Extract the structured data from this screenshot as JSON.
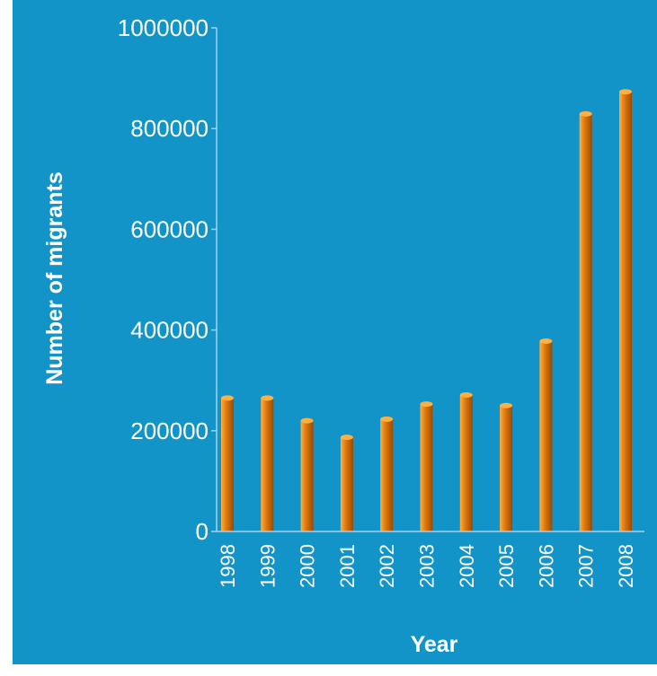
{
  "chart_data": {
    "type": "bar",
    "title": "",
    "xlabel": "Year",
    "ylabel": "Number of migrants",
    "categories": [
      "1998",
      "1999",
      "2000",
      "2001",
      "2002",
      "2003",
      "2004",
      "2005",
      "2006",
      "2007",
      "2008"
    ],
    "values": [
      265000,
      265000,
      220000,
      187000,
      223000,
      253000,
      271000,
      250000,
      378000,
      829000,
      873000
    ],
    "yticks": [
      "0",
      "200000",
      "400000",
      "600000",
      "800000",
      "1000000"
    ],
    "ylim": [
      0,
      1000000
    ],
    "grid": false,
    "legend": "none"
  },
  "colors": {
    "background": "#1394C8",
    "bar_light": "#FFB040",
    "bar_mid": "#E07A10",
    "bar_dark": "#9A4A02",
    "axis": "#9FD3EC",
    "text": "#FFFFFF"
  }
}
